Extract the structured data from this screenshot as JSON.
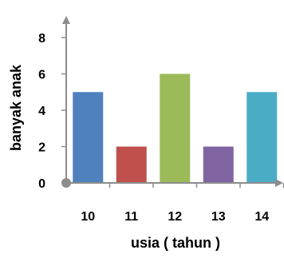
{
  "chart_data": {
    "type": "bar",
    "title": "",
    "xlabel": "usia ( tahun )",
    "ylabel": "banyak anak",
    "categories": [
      "10",
      "11",
      "12",
      "13",
      "14"
    ],
    "values": [
      5,
      2,
      6,
      2,
      5
    ],
    "yticks": [
      "0",
      "2",
      "4",
      "6",
      "8"
    ],
    "ylim": [
      0,
      8
    ],
    "grid": false,
    "legend": "none",
    "colors": [
      "#4f81bd",
      "#c0504d",
      "#9bbb59",
      "#8064a2",
      "#4bacc6"
    ],
    "axis_color": "#8c8c8c"
  }
}
